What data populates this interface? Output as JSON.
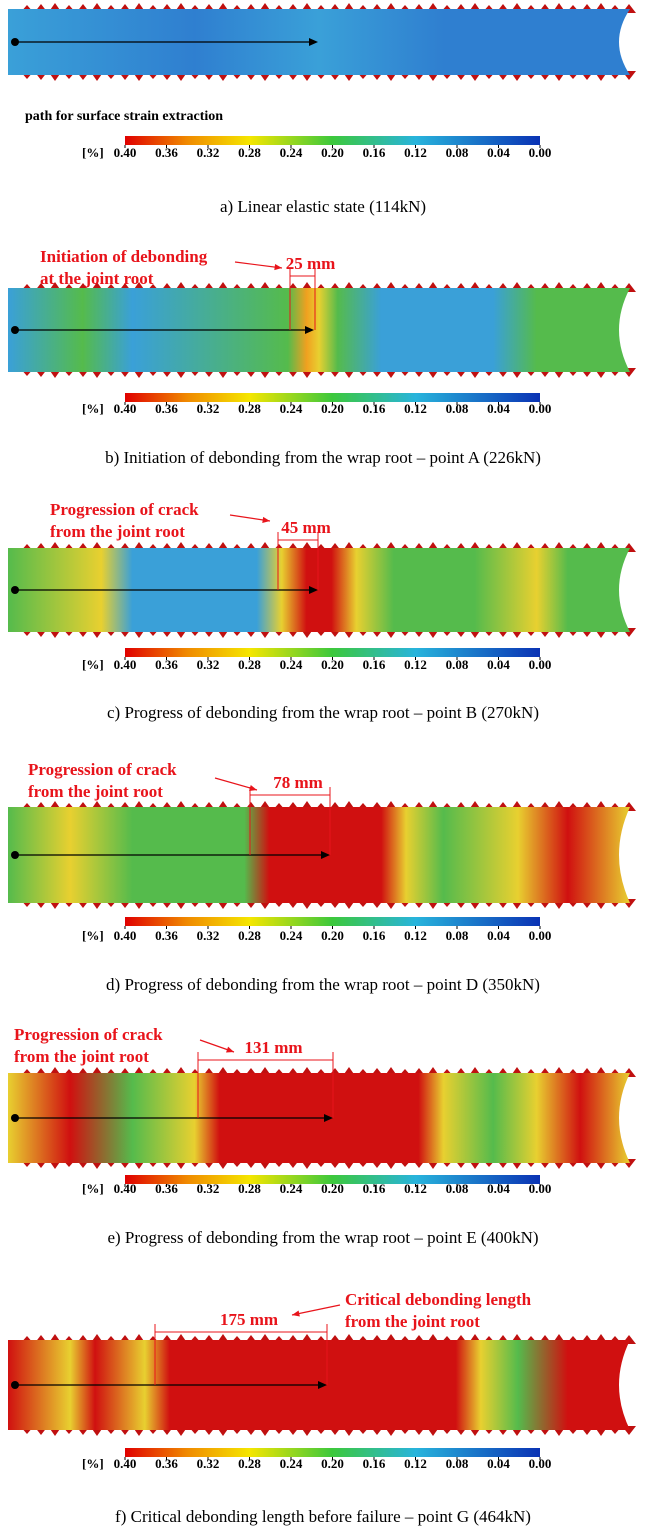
{
  "panels": [
    {
      "path_label": "path for surface strain extraction",
      "caption": "a) Linear elastic state (114kN)"
    },
    {
      "annotation": [
        "Initiation of debonding",
        "at the joint root"
      ],
      "dimension": "25 mm",
      "caption": "b) Initiation of debonding from the wrap root – point A (226kN)"
    },
    {
      "annotation": [
        "Progression of crack",
        "from the joint root"
      ],
      "dimension": "45 mm",
      "caption": "c) Progress of debonding from the wrap root – point B (270kN)"
    },
    {
      "annotation": [
        "Progression of crack",
        "from the joint root"
      ],
      "dimension": "78 mm",
      "caption": "d) Progress of debonding from the wrap root – point D (350kN)"
    },
    {
      "annotation": [
        "Progression of crack",
        "from the joint root"
      ],
      "dimension": "131 mm",
      "caption": "e) Progress of debonding from the wrap root – point E (400kN)"
    },
    {
      "annotation": [
        "Critical debonding length",
        "from the joint root"
      ],
      "dimension": "175 mm",
      "caption": "f) Critical debonding length before failure – point G (464kN)"
    }
  ],
  "colorbar": {
    "unit": "[%]",
    "labels": [
      "0.40",
      "0.36",
      "0.32",
      "0.28",
      "0.24",
      "0.20",
      "0.16",
      "0.12",
      "0.08",
      "0.04",
      "0.00"
    ]
  }
}
